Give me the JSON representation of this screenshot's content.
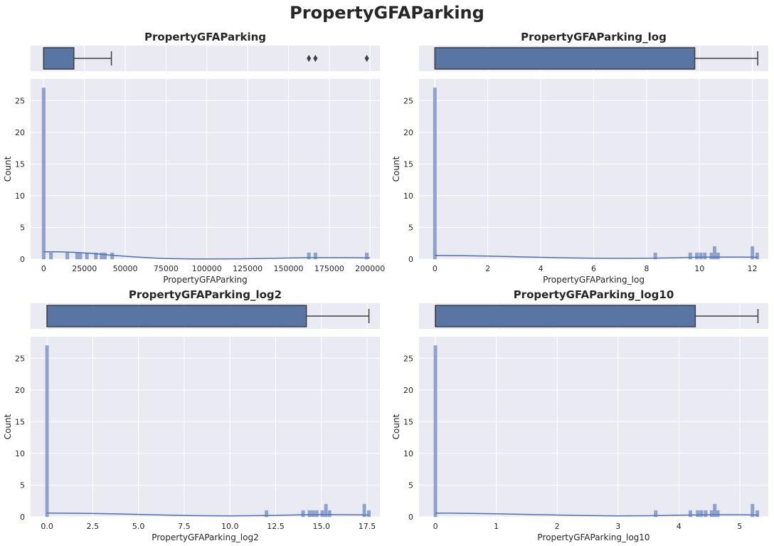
{
  "suptitle": "PropertyGFAParking",
  "colors": {
    "background": "#eaeaf2",
    "grid": "#ffffff",
    "bar": "#8ea2cd",
    "kde": "#4c72b0",
    "box_fill": "#5975a4",
    "box_edge": "#3f3f3f",
    "text": "#262626"
  },
  "chart_data": [
    {
      "type": "histogram+boxplot",
      "title": "PropertyGFAParking",
      "xlabel": "PropertyGFAParking",
      "ylabel": "Count",
      "xlim": [
        -8000,
        206000
      ],
      "ylim": [
        0,
        28.4
      ],
      "xticks": [
        0,
        25000,
        50000,
        75000,
        100000,
        125000,
        150000,
        175000,
        200000
      ],
      "xtick_labels": [
        "0",
        "25000",
        "50000",
        "75000",
        "100000",
        "125000",
        "150000",
        "175000",
        "200000"
      ],
      "yticks": [
        0,
        5,
        10,
        15,
        20,
        25
      ],
      "bin_width": 2000,
      "bars": [
        [
          0,
          27
        ],
        [
          4500,
          1
        ],
        [
          14500,
          1
        ],
        [
          20500,
          1
        ],
        [
          22500,
          1
        ],
        [
          26500,
          1
        ],
        [
          32000,
          1
        ],
        [
          35500,
          1
        ],
        [
          37500,
          1
        ],
        [
          42000,
          1
        ],
        [
          162500,
          1
        ],
        [
          166500,
          1
        ],
        [
          198000,
          1
        ]
      ],
      "kde": [
        [
          0,
          1.15
        ],
        [
          10000,
          1.15
        ],
        [
          20000,
          1.05
        ],
        [
          30000,
          0.9
        ],
        [
          40000,
          0.65
        ],
        [
          50000,
          0.45
        ],
        [
          60000,
          0.28
        ],
        [
          70000,
          0.15
        ],
        [
          80000,
          0.07
        ],
        [
          90000,
          0.03
        ],
        [
          100000,
          0.02
        ],
        [
          120000,
          0.04
        ],
        [
          140000,
          0.12
        ],
        [
          160000,
          0.22
        ],
        [
          175000,
          0.24
        ],
        [
          190000,
          0.22
        ],
        [
          200000,
          0.2
        ]
      ],
      "box": {
        "q1": 0,
        "median": 0,
        "q3": 18500,
        "whisker_low": 0,
        "whisker_high": 41500,
        "outliers": [
          162500,
          166500,
          198000
        ]
      }
    },
    {
      "type": "histogram+boxplot",
      "title": "PropertyGFAParking_log",
      "xlabel": "PropertyGFAParking_log",
      "ylabel": "Count",
      "xlim": [
        -0.6,
        12.6
      ],
      "ylim": [
        0,
        28.4
      ],
      "xticks": [
        0,
        2,
        4,
        6,
        8,
        10,
        12
      ],
      "xtick_labels": [
        "0",
        "2",
        "4",
        "6",
        "8",
        "10",
        "12"
      ],
      "yticks": [
        0,
        5,
        10,
        15,
        20,
        25
      ],
      "bin_width": 0.12,
      "bars": [
        [
          0,
          27
        ],
        [
          8.33,
          1
        ],
        [
          9.65,
          1
        ],
        [
          9.9,
          1
        ],
        [
          10.05,
          1
        ],
        [
          10.2,
          1
        ],
        [
          10.45,
          1
        ],
        [
          10.57,
          2
        ],
        [
          10.7,
          1
        ],
        [
          12.0,
          2
        ],
        [
          12.18,
          1
        ]
      ],
      "kde": [
        [
          0,
          0.6
        ],
        [
          1,
          0.55
        ],
        [
          2,
          0.48
        ],
        [
          3,
          0.38
        ],
        [
          4,
          0.28
        ],
        [
          5,
          0.2
        ],
        [
          6,
          0.14
        ],
        [
          7,
          0.12
        ],
        [
          8,
          0.14
        ],
        [
          9,
          0.2
        ],
        [
          10,
          0.3
        ],
        [
          11,
          0.33
        ],
        [
          12,
          0.3
        ],
        [
          12.2,
          0.28
        ]
      ],
      "box": {
        "q1": 0,
        "median": 0,
        "q3": 9.82,
        "whisker_low": 0,
        "whisker_high": 12.2,
        "outliers": []
      }
    },
    {
      "type": "histogram+boxplot",
      "title": "PropertyGFAParking_log2",
      "xlabel": "PropertyGFAParking_log2",
      "ylabel": "Count",
      "xlim": [
        -0.9,
        18.2
      ],
      "ylim": [
        0,
        28.4
      ],
      "xticks": [
        0,
        2.5,
        5,
        7.5,
        10,
        12.5,
        15,
        17.5
      ],
      "xtick_labels": [
        "0.0",
        "2.5",
        "5.0",
        "7.5",
        "10.0",
        "12.5",
        "15.0",
        "17.5"
      ],
      "yticks": [
        0,
        5,
        10,
        15,
        20,
        25
      ],
      "bin_width": 0.17,
      "bars": [
        [
          0,
          27
        ],
        [
          12.0,
          1
        ],
        [
          14.0,
          1
        ],
        [
          14.35,
          1
        ],
        [
          14.55,
          1
        ],
        [
          14.75,
          1
        ],
        [
          15.05,
          1
        ],
        [
          15.25,
          2
        ],
        [
          15.45,
          1
        ],
        [
          17.35,
          2
        ],
        [
          17.6,
          1
        ]
      ],
      "kde": [
        [
          0,
          0.6
        ],
        [
          2,
          0.55
        ],
        [
          4,
          0.45
        ],
        [
          6,
          0.3
        ],
        [
          8,
          0.18
        ],
        [
          10,
          0.14
        ],
        [
          12,
          0.2
        ],
        [
          14,
          0.32
        ],
        [
          15.5,
          0.35
        ],
        [
          17,
          0.3
        ],
        [
          17.6,
          0.28
        ]
      ],
      "box": {
        "q1": 0,
        "median": 0,
        "q3": 14.18,
        "whisker_low": 0,
        "whisker_high": 17.6,
        "outliers": []
      }
    },
    {
      "type": "histogram+boxplot",
      "title": "PropertyGFAParking_log10",
      "xlabel": "PropertyGFAParking_log10",
      "ylabel": "Count",
      "xlim": [
        -0.27,
        5.47
      ],
      "ylim": [
        0,
        28.4
      ],
      "xticks": [
        0,
        1,
        2,
        3,
        4,
        5
      ],
      "xtick_labels": [
        "0",
        "1",
        "2",
        "3",
        "4",
        "5"
      ],
      "yticks": [
        0,
        5,
        10,
        15,
        20,
        25
      ],
      "bin_width": 0.052,
      "bars": [
        [
          0,
          27
        ],
        [
          3.62,
          1
        ],
        [
          4.19,
          1
        ],
        [
          4.31,
          1
        ],
        [
          4.37,
          1
        ],
        [
          4.44,
          1
        ],
        [
          4.54,
          1
        ],
        [
          4.59,
          2
        ],
        [
          4.64,
          1
        ],
        [
          5.21,
          2
        ],
        [
          5.29,
          1
        ]
      ],
      "kde": [
        [
          0,
          0.6
        ],
        [
          0.5,
          0.55
        ],
        [
          1,
          0.48
        ],
        [
          1.5,
          0.38
        ],
        [
          2,
          0.28
        ],
        [
          2.5,
          0.2
        ],
        [
          3,
          0.15
        ],
        [
          3.5,
          0.17
        ],
        [
          4,
          0.25
        ],
        [
          4.5,
          0.33
        ],
        [
          5,
          0.32
        ],
        [
          5.3,
          0.28
        ]
      ],
      "box": {
        "q1": 0,
        "median": 0,
        "q3": 4.27,
        "whisker_low": 0,
        "whisker_high": 5.3,
        "outliers": []
      }
    }
  ]
}
